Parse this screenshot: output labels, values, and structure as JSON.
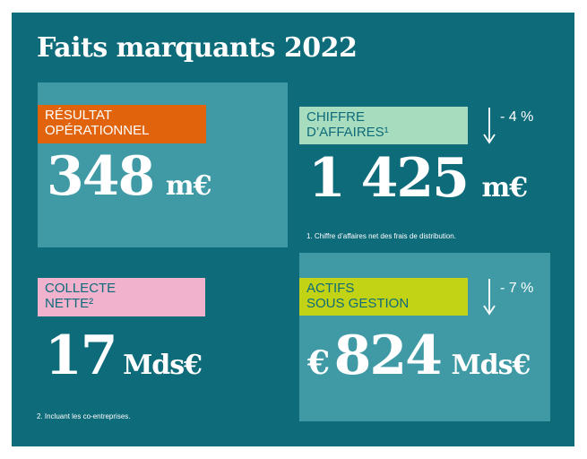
{
  "title": "Faits marquants 2022",
  "kpis": {
    "resultat": {
      "label_line1": "RÉSULTAT",
      "label_line2": "OPÉRATIONNEL",
      "value": "348",
      "unit": "m€",
      "label_color": "#e1640d"
    },
    "chiffre": {
      "label_line1": "CHIFFRE",
      "label_line2": "D’AFFAIRES¹",
      "value": "1 425",
      "unit": "m€",
      "trend": "- 4 %",
      "footnote": "1. Chiffre d’affaires net des frais de distribution.",
      "label_color": "#a8dcbf"
    },
    "collecte": {
      "label_line1": "COLLECTE",
      "label_line2": "NETTE²",
      "value": "17",
      "unit": "Mds€",
      "footnote": "2. Incluant les co-entreprises.",
      "label_color": "#f0b2cc"
    },
    "actifs": {
      "label_line1": "ACTIFS",
      "label_line2": "SOUS GESTION",
      "prefix": "€",
      "value": "824",
      "unit": "Mds€",
      "trend": "- 7 %",
      "label_color": "#c2d214"
    }
  },
  "icons": {
    "trend": "arrow-down-icon"
  }
}
